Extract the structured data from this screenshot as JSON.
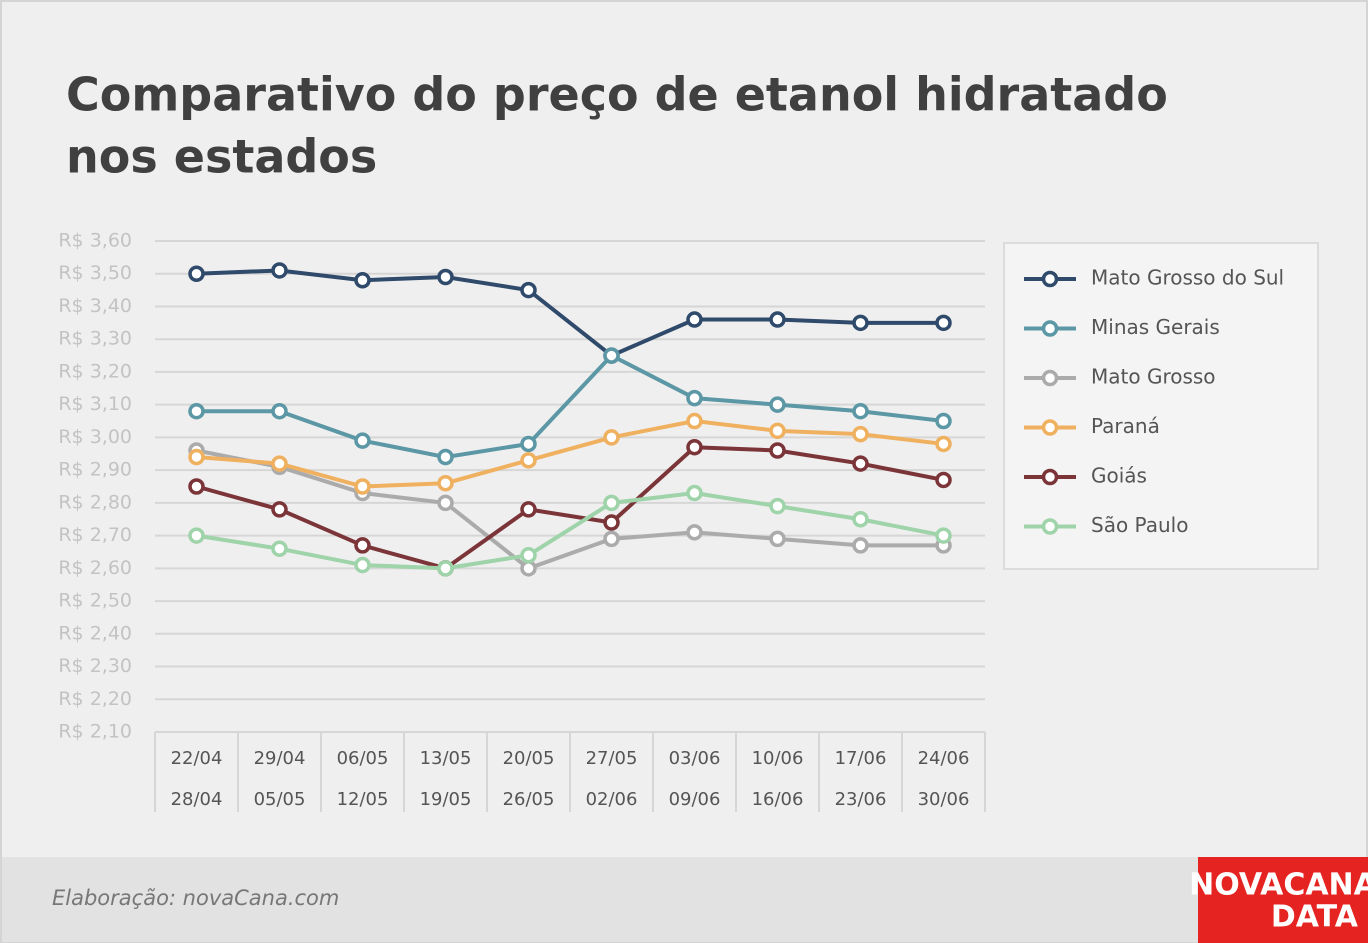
{
  "chart_data": {
    "type": "line",
    "title": [
      "Comparativo do preço de etanol hidratado",
      "nos estados"
    ],
    "categories": [
      [
        "22/04",
        "28/04"
      ],
      [
        "29/04",
        "05/05"
      ],
      [
        "06/05",
        "12/05"
      ],
      [
        "13/05",
        "19/05"
      ],
      [
        "20/05",
        "26/05"
      ],
      [
        "27/05",
        "02/06"
      ],
      [
        "03/06",
        "09/06"
      ],
      [
        "10/06",
        "16/06"
      ],
      [
        "17/06",
        "23/06"
      ],
      [
        "24/06",
        "30/06"
      ]
    ],
    "series": [
      {
        "name": "Mato Grosso do Sul",
        "color": "#2f4a6a",
        "values": [
          3.5,
          3.51,
          3.48,
          3.49,
          3.45,
          3.25,
          3.36,
          3.36,
          3.35,
          3.35
        ]
      },
      {
        "name": "Minas Gerais",
        "color": "#5b97a5",
        "values": [
          3.08,
          3.08,
          2.99,
          2.94,
          2.98,
          3.25,
          3.12,
          3.1,
          3.08,
          3.05
        ]
      },
      {
        "name": "Mato Grosso",
        "color": "#ababab",
        "values": [
          2.96,
          2.91,
          2.83,
          2.8,
          2.6,
          2.69,
          2.71,
          2.69,
          2.67,
          2.67
        ]
      },
      {
        "name": "Paraná",
        "color": "#efb15f",
        "values": [
          2.94,
          2.92,
          2.85,
          2.86,
          2.93,
          3.0,
          3.05,
          3.02,
          3.01,
          2.98
        ]
      },
      {
        "name": "Goiás",
        "color": "#7b3539",
        "values": [
          2.85,
          2.78,
          2.67,
          2.6,
          2.78,
          2.74,
          2.97,
          2.96,
          2.92,
          2.87
        ]
      },
      {
        "name": "São Paulo",
        "color": "#9fd3a9",
        "values": [
          2.7,
          2.66,
          2.61,
          2.6,
          2.64,
          2.8,
          2.83,
          2.79,
          2.75,
          2.7
        ]
      }
    ],
    "ylim": [
      2.1,
      3.6
    ],
    "yticks": [
      {
        "value": 2.1,
        "label": "R$ 2,10"
      },
      {
        "value": 2.2,
        "label": "R$ 2,20"
      },
      {
        "value": 2.3,
        "label": "R$ 2,30"
      },
      {
        "value": 2.4,
        "label": "R$ 2,40"
      },
      {
        "value": 2.5,
        "label": "R$ 2,50"
      },
      {
        "value": 2.6,
        "label": "R$ 2,60"
      },
      {
        "value": 2.7,
        "label": "R$ 2,70"
      },
      {
        "value": 2.8,
        "label": "R$ 2,80"
      },
      {
        "value": 2.9,
        "label": "R$ 2,90"
      },
      {
        "value": 3.0,
        "label": "R$ 3,00"
      },
      {
        "value": 3.1,
        "label": "R$ 3,10"
      },
      {
        "value": 3.2,
        "label": "R$ 3,20"
      },
      {
        "value": 3.3,
        "label": "R$ 3,30"
      },
      {
        "value": 3.4,
        "label": "R$ 3,40"
      },
      {
        "value": 3.5,
        "label": "R$ 3,50"
      },
      {
        "value": 3.6,
        "label": "R$ 3,60"
      }
    ],
    "grid": true,
    "legend": "right"
  },
  "footer": {
    "credit": "Elaboração: novaCana.com",
    "logo": [
      "NOVACANA",
      "DATA"
    ]
  }
}
